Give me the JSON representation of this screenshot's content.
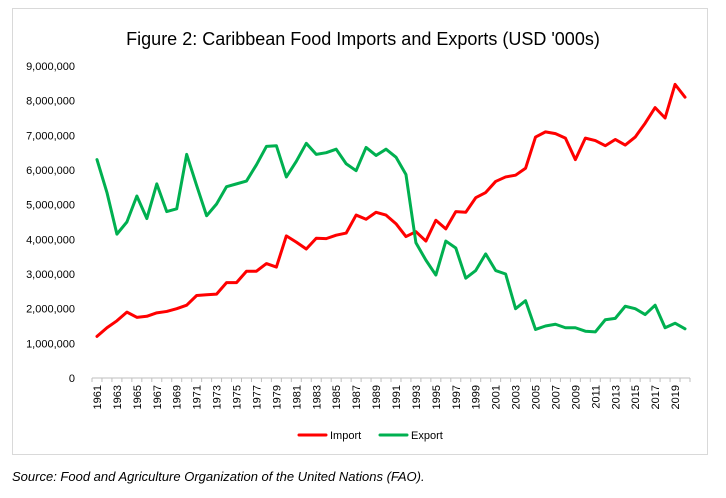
{
  "chart_data": {
    "type": "line",
    "title": "Figure 2: Caribbean Food Imports and Exports (USD '000s)",
    "xlabel": "",
    "ylabel": "",
    "ylim": [
      0,
      9000000
    ],
    "yticks": [
      0,
      1000000,
      2000000,
      3000000,
      4000000,
      5000000,
      6000000,
      7000000,
      8000000,
      9000000
    ],
    "ytick_labels": [
      "0",
      "1,000,000",
      "2,000,000",
      "3,000,000",
      "4,000,000",
      "5,000,000",
      "6,000,000",
      "7,000,000",
      "8,000,000",
      "9,000,000"
    ],
    "x": [
      1961,
      1962,
      1963,
      1964,
      1965,
      1966,
      1967,
      1968,
      1969,
      1970,
      1971,
      1972,
      1973,
      1974,
      1975,
      1976,
      1977,
      1978,
      1979,
      1980,
      1981,
      1982,
      1983,
      1984,
      1985,
      1986,
      1987,
      1988,
      1989,
      1990,
      1991,
      1992,
      1993,
      1994,
      1995,
      1996,
      1997,
      1998,
      1999,
      2000,
      2001,
      2002,
      2003,
      2004,
      2005,
      2006,
      2007,
      2008,
      2009,
      2010,
      2011,
      2012,
      2013,
      2014,
      2015,
      2016,
      2017,
      2018,
      2019,
      2020
    ],
    "xtick_labels": [
      "1961",
      "1963",
      "1965",
      "1967",
      "1969",
      "1971",
      "1973",
      "1975",
      "1977",
      "1979",
      "1981",
      "1983",
      "1985",
      "1987",
      "1989",
      "1991",
      "1993",
      "1995",
      "1997",
      "1999",
      "2001",
      "2003",
      "2005",
      "2007",
      "2009",
      "2011",
      "2013",
      "2015",
      "2017",
      "2019"
    ],
    "series": [
      {
        "name": "Import",
        "color": "#ff0000",
        "values": [
          1200000,
          1450000,
          1650000,
          1900000,
          1750000,
          1780000,
          1880000,
          1920000,
          2000000,
          2100000,
          2380000,
          2400000,
          2420000,
          2750000,
          2750000,
          3080000,
          3080000,
          3300000,
          3200000,
          4100000,
          3920000,
          3720000,
          4030000,
          4020000,
          4120000,
          4180000,
          4700000,
          4580000,
          4780000,
          4700000,
          4450000,
          4080000,
          4220000,
          3950000,
          4550000,
          4300000,
          4800000,
          4780000,
          5200000,
          5350000,
          5670000,
          5800000,
          5850000,
          6050000,
          6950000,
          7100000,
          7050000,
          6920000,
          6300000,
          6920000,
          6850000,
          6700000,
          6880000,
          6720000,
          6950000,
          7350000,
          7800000,
          7500000,
          8470000,
          8100000
        ]
      },
      {
        "name": "Export",
        "color": "#00b050",
        "values": [
          6300000,
          5350000,
          4150000,
          4500000,
          5250000,
          4600000,
          5600000,
          4800000,
          4880000,
          6450000,
          5550000,
          4680000,
          5020000,
          5520000,
          5600000,
          5680000,
          6150000,
          6680000,
          6700000,
          5800000,
          6250000,
          6770000,
          6450000,
          6500000,
          6600000,
          6180000,
          5980000,
          6650000,
          6420000,
          6600000,
          6370000,
          5870000,
          3900000,
          3400000,
          2970000,
          3950000,
          3750000,
          2880000,
          3100000,
          3580000,
          3100000,
          3000000,
          2000000,
          2230000,
          1400000,
          1500000,
          1550000,
          1450000,
          1450000,
          1350000,
          1330000,
          1680000,
          1720000,
          2070000,
          2000000,
          1830000,
          2100000,
          1450000,
          1580000,
          1420000
        ]
      }
    ],
    "legend_position": "bottom-center",
    "grid": false
  },
  "source_note": "Source: Food and Agriculture Organization of the United Nations (FAO)."
}
